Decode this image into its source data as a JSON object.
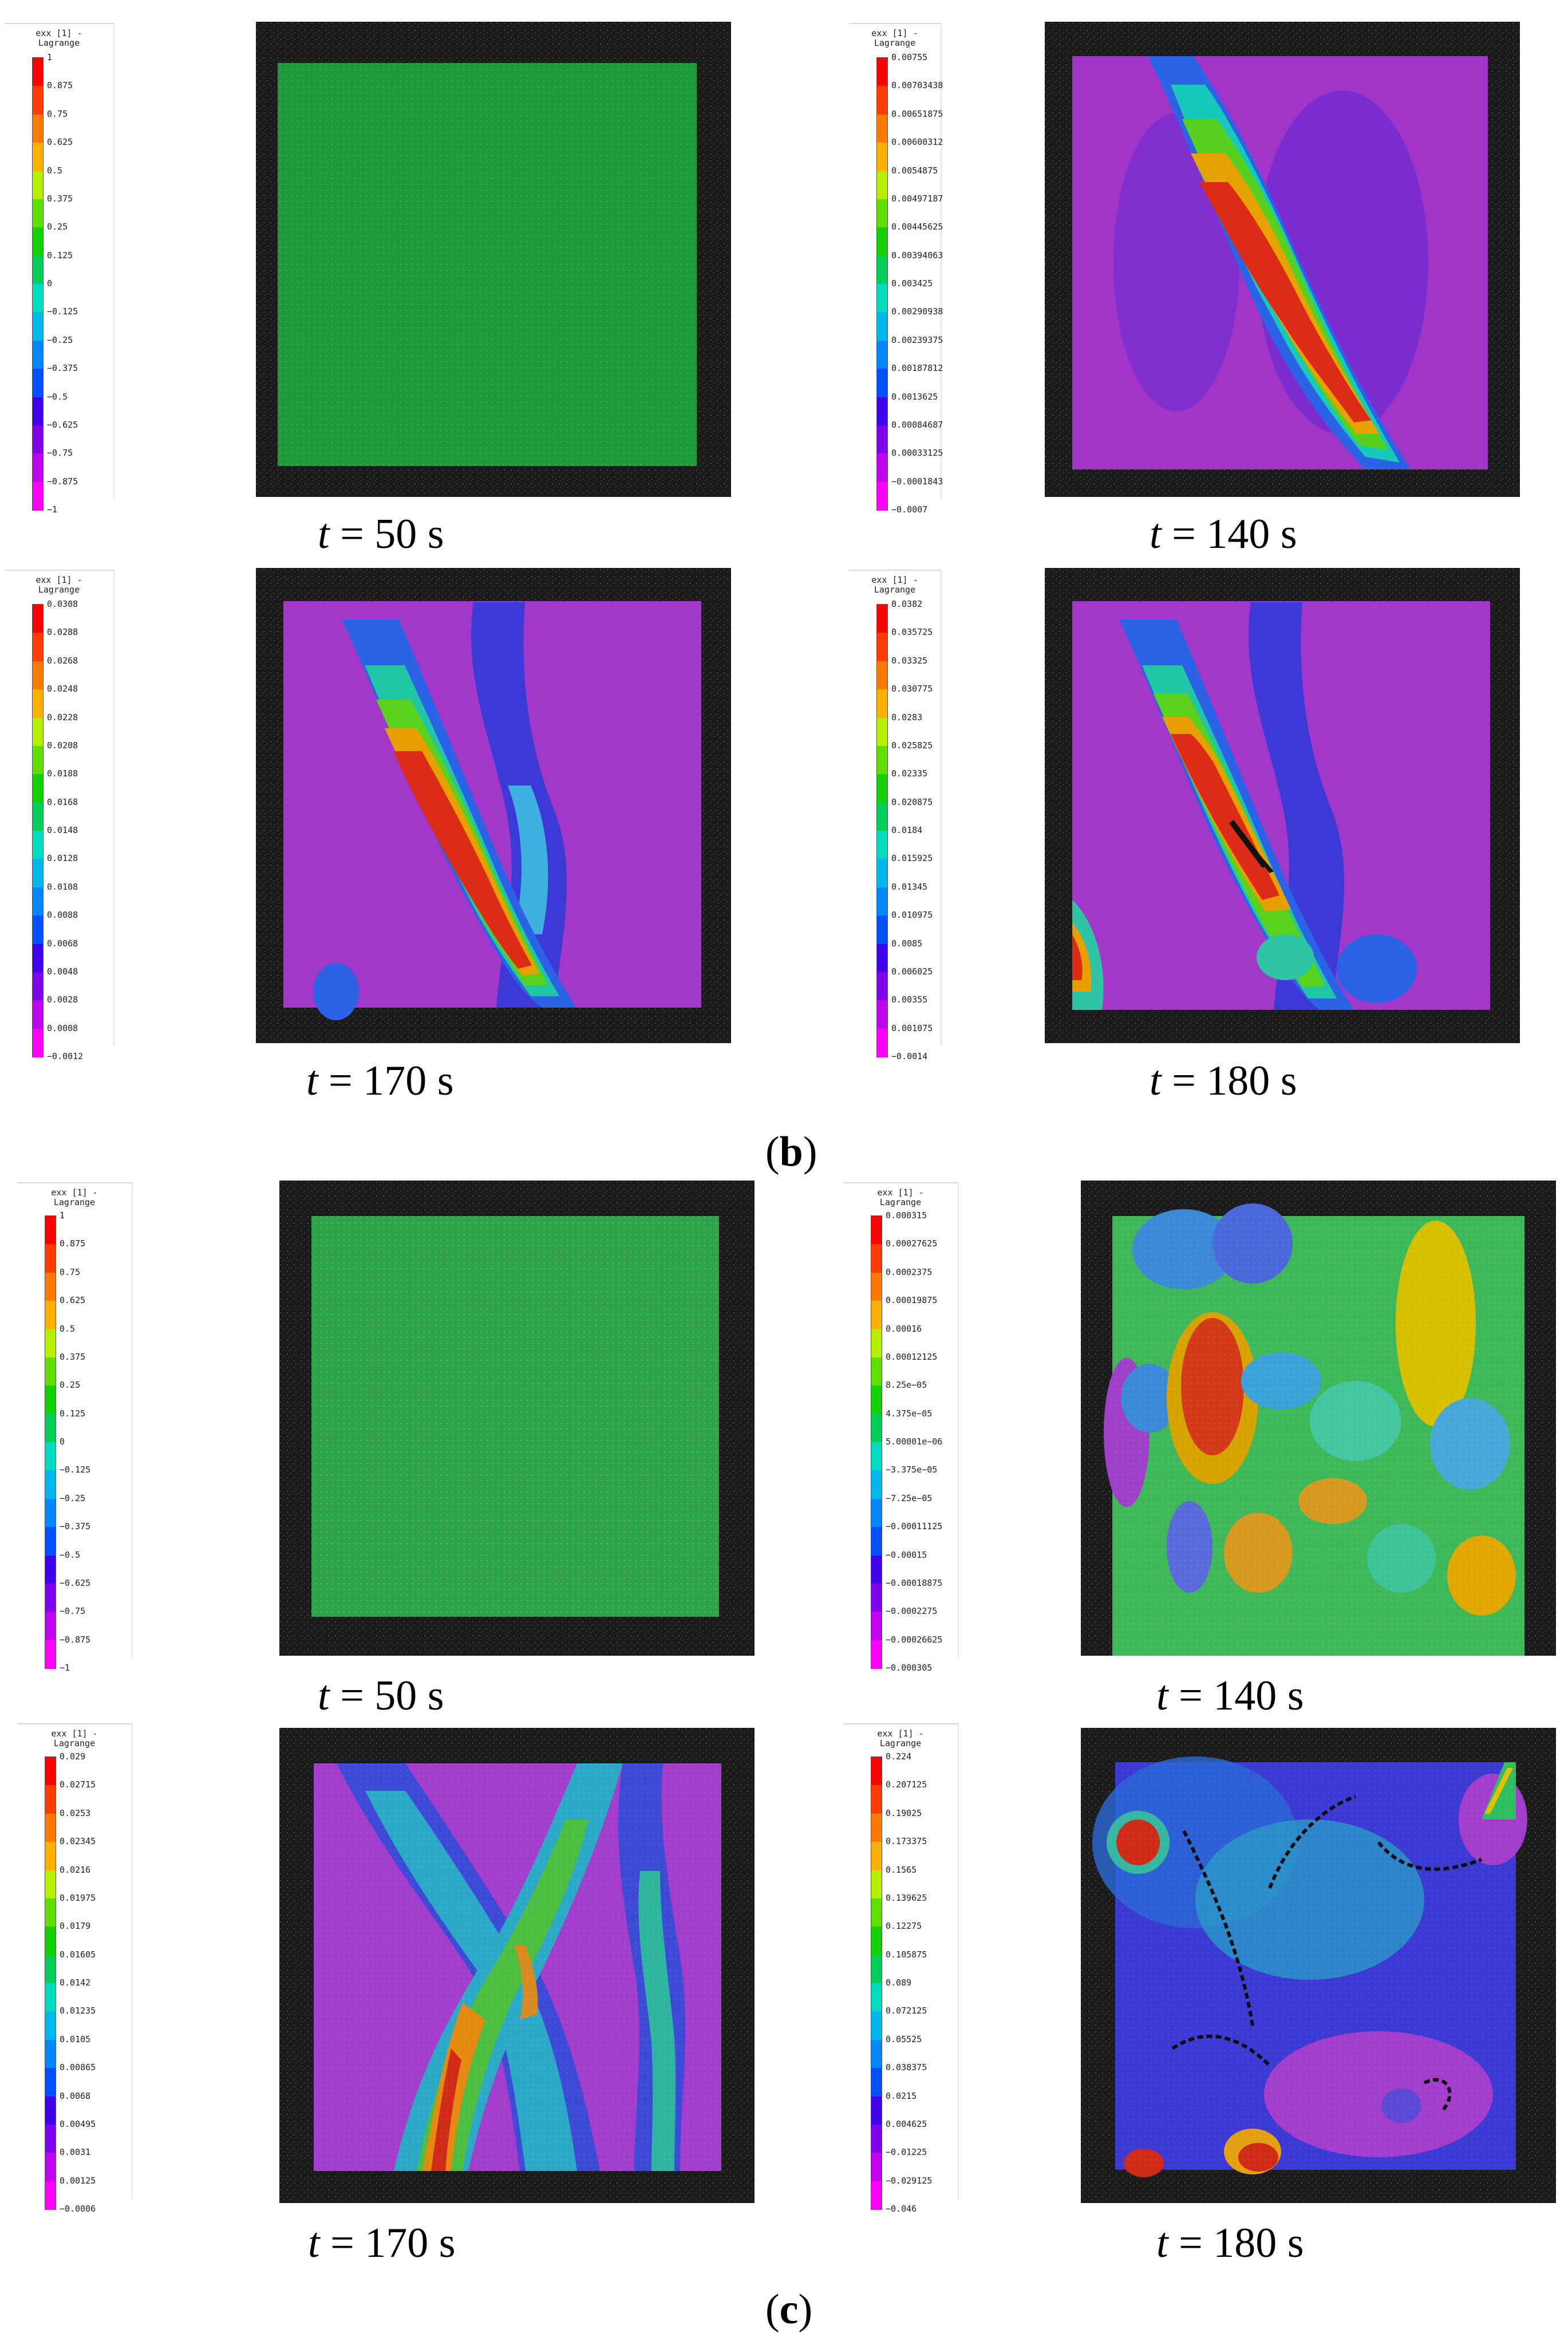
{
  "legend_title": "exx [1] -\nLagrange",
  "captions": {
    "b_50": {
      "t": "t",
      "eq": " = 50 s"
    },
    "b_140": {
      "t": "t",
      "eq": " = 140 s"
    },
    "b_170": {
      "t": "t",
      "eq": " = 170 s"
    },
    "b_180": {
      "t": "t",
      "eq": " = 180 s"
    },
    "c_50": {
      "t": "t",
      "eq": " = 50 s"
    },
    "c_140": {
      "t": "t",
      "eq": " = 140 s"
    },
    "c_170": {
      "t": "t",
      "eq": " = 170 s"
    },
    "c_180": {
      "t": "t",
      "eq": " = 180 s"
    }
  },
  "sublabels": {
    "b": {
      "open": "(",
      "letter": "b",
      "close": ")"
    },
    "c": {
      "open": "(",
      "letter": "c",
      "close": ")"
    }
  },
  "colors": [
    "#ff0000",
    "#ff3d00",
    "#ff7a00",
    "#ffb000",
    "#f2e600",
    "#b6ef00",
    "#5fe000",
    "#14d200",
    "#00d05a",
    "#00dcc0",
    "#00b8ee",
    "#0087ff",
    "#0050ff",
    "#1212ff",
    "#4000ee",
    "#8000ee",
    "#c000f0",
    "#ff00ff"
  ],
  "legends": [
    {
      "id": "b1",
      "labels": [
        "1",
        "0.875",
        "0.75",
        "0.625",
        "0.5",
        "0.375",
        "0.25",
        "0.125",
        "0",
        "−0.125",
        "−0.25",
        "−0.375",
        "−0.5",
        "−0.625",
        "−0.75",
        "−0.875",
        "−1"
      ]
    },
    {
      "id": "b2",
      "labels": [
        "0.00755",
        "0.00703438",
        "0.00651875",
        "0.00600312",
        "0.0054875",
        "0.00497187",
        "0.00445625",
        "0.00394063",
        "0.003425",
        "0.00290938",
        "0.00239375",
        "0.00187812",
        "0.0013625",
        "0.00084687",
        "0.00033125",
        "−0.0001843",
        "−0.0007"
      ]
    },
    {
      "id": "b3",
      "labels": [
        "0.0308",
        "0.0288",
        "0.0268",
        "0.0248",
        "0.0228",
        "0.0208",
        "0.0188",
        "0.0168",
        "0.0148",
        "0.0128",
        "0.0108",
        "0.0088",
        "0.0068",
        "0.0048",
        "0.0028",
        "0.0008",
        "−0.0012"
      ]
    },
    {
      "id": "b4",
      "labels": [
        "0.0382",
        "0.035725",
        "0.03325",
        "0.030775",
        "0.0283",
        "0.025825",
        "0.02335",
        "0.020875",
        "0.0184",
        "0.015925",
        "0.01345",
        "0.010975",
        "0.0085",
        "0.006025",
        "0.00355",
        "0.001075",
        "−0.0014"
      ]
    },
    {
      "id": "c1",
      "labels": [
        "1",
        "0.875",
        "0.75",
        "0.625",
        "0.5",
        "0.375",
        "0.25",
        "0.125",
        "0",
        "−0.125",
        "−0.25",
        "−0.375",
        "−0.5",
        "−0.625",
        "−0.75",
        "−0.875",
        "−1"
      ]
    },
    {
      "id": "c2",
      "labels": [
        "0.000315",
        "0.00027625",
        "0.0002375",
        "0.00019875",
        "0.00016",
        "0.00012125",
        "8.25e−05",
        "4.375e−05",
        "5.00001e−06",
        "−3.375e−05",
        "−7.25e−05",
        "−0.00011125",
        "−0.00015",
        "−0.00018875",
        "−0.0002275",
        "−0.00026625",
        "−0.000305"
      ]
    },
    {
      "id": "c3",
      "labels": [
        "0.029",
        "0.02715",
        "0.0253",
        "0.02345",
        "0.0216",
        "0.01975",
        "0.0179",
        "0.01605",
        "0.0142",
        "0.01235",
        "0.0105",
        "0.00865",
        "0.0068",
        "0.00495",
        "0.0031",
        "0.00125",
        "−0.0006"
      ]
    },
    {
      "id": "c4",
      "labels": [
        "0.224",
        "0.207125",
        "0.19025",
        "0.173375",
        "0.1565",
        "0.139625",
        "0.12275",
        "0.105875",
        "0.089",
        "0.072125",
        "0.05525",
        "0.038375",
        "0.0215",
        "0.004625",
        "−0.01225",
        "−0.029125",
        "−0.046"
      ]
    }
  ]
}
